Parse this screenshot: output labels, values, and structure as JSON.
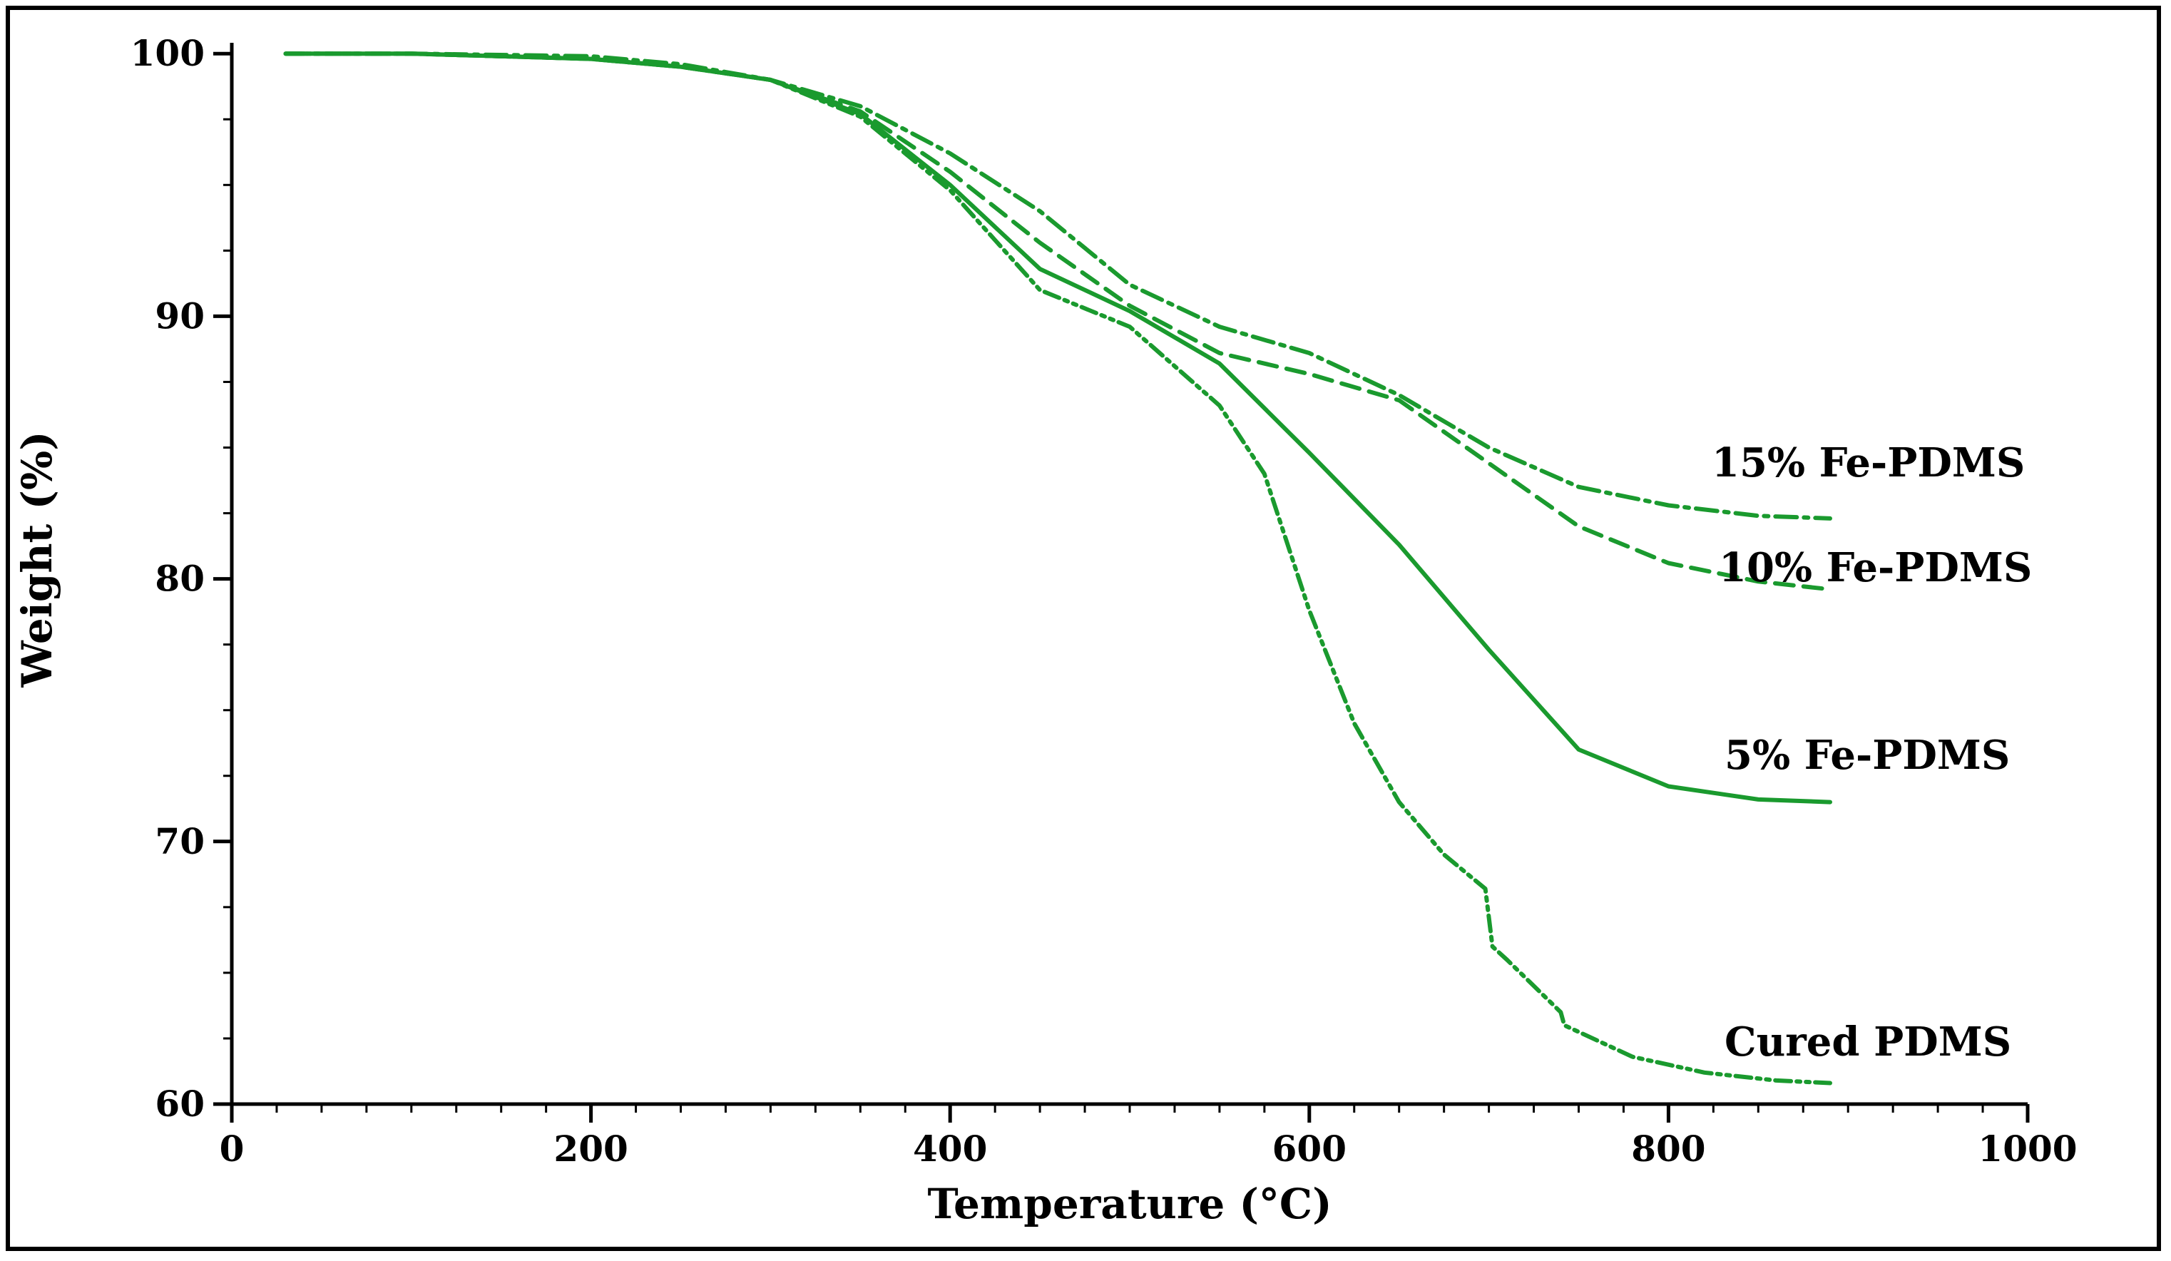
{
  "chart_data": {
    "type": "line",
    "xlabel": "Temperature (°C)",
    "ylabel": "Weight (%)",
    "xlim": [
      0,
      1000
    ],
    "ylim": [
      60,
      101.5
    ],
    "x_ticks": [
      0,
      200,
      400,
      600,
      800,
      1000
    ],
    "x_tick_labels": [
      "0",
      "200",
      "400",
      "600",
      "800",
      "1000"
    ],
    "y_ticks": [
      60,
      70,
      80,
      90,
      100
    ],
    "y_tick_labels": [
      "60",
      "70",
      "80",
      "90",
      "100"
    ],
    "grid": false,
    "line_color": "#1a9a2e",
    "series": [
      {
        "name": "15% Fe-PDMS",
        "style": "dashdot",
        "x": [
          30,
          100,
          200,
          250,
          300,
          350,
          400,
          450,
          500,
          550,
          600,
          650,
          700,
          750,
          800,
          850,
          890
        ],
        "y": [
          100,
          100,
          99.9,
          99.6,
          99.0,
          98.0,
          96.2,
          94.0,
          91.2,
          89.6,
          88.6,
          87.0,
          85.0,
          83.5,
          82.8,
          82.4,
          82.3
        ]
      },
      {
        "name": "10% Fe-PDMS",
        "style": "dashed",
        "x": [
          30,
          100,
          200,
          250,
          300,
          350,
          400,
          450,
          500,
          550,
          600,
          650,
          700,
          750,
          800,
          850,
          890
        ],
        "y": [
          100,
          100,
          99.8,
          99.5,
          99.0,
          97.8,
          95.5,
          92.8,
          90.4,
          88.6,
          87.8,
          86.8,
          84.4,
          82.0,
          80.6,
          79.9,
          79.6
        ]
      },
      {
        "name": "5% Fe-PDMS",
        "style": "solid",
        "x": [
          30,
          100,
          200,
          250,
          300,
          350,
          400,
          450,
          500,
          550,
          600,
          650,
          700,
          750,
          800,
          850,
          890
        ],
        "y": [
          100,
          100,
          99.8,
          99.5,
          99.0,
          97.7,
          95.0,
          91.8,
          90.2,
          88.2,
          84.8,
          81.3,
          77.3,
          73.5,
          72.1,
          71.6,
          71.5
        ]
      },
      {
        "name": "Cured PDMS",
        "style": "dashdotdot",
        "x": [
          30,
          100,
          200,
          250,
          300,
          350,
          400,
          450,
          500,
          550,
          575,
          600,
          625,
          650,
          675,
          698,
          702,
          710,
          740,
          742,
          780,
          820,
          860,
          890
        ],
        "y": [
          100,
          100,
          99.8,
          99.5,
          99.0,
          97.6,
          94.8,
          91.0,
          89.6,
          86.6,
          84.0,
          78.8,
          74.5,
          71.5,
          69.5,
          68.2,
          66.0,
          65.5,
          63.5,
          63.0,
          61.8,
          61.2,
          60.9,
          60.8
        ]
      }
    ]
  }
}
